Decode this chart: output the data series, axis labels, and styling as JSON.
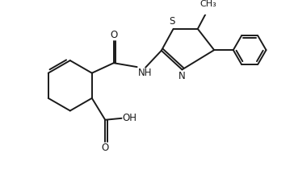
{
  "bg_color": "#ffffff",
  "line_color": "#1a1a1a",
  "line_width": 1.4,
  "font_size": 8.5,
  "fig_width": 3.64,
  "fig_height": 2.16,
  "dpi": 100,
  "xlim": [
    0,
    10
  ],
  "ylim": [
    0,
    6
  ]
}
